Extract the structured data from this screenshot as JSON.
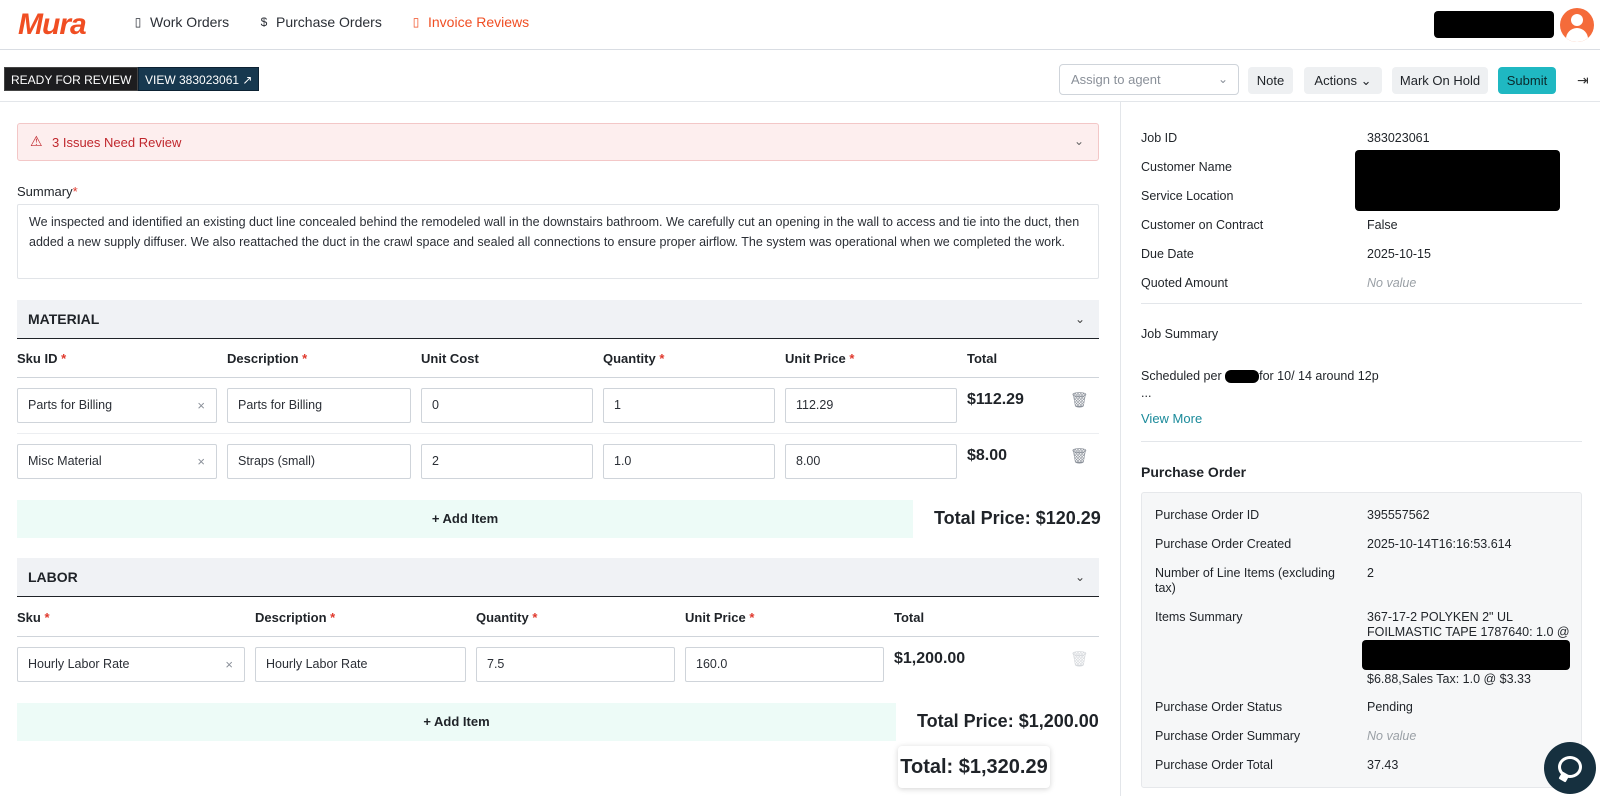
{
  "app": {
    "logo_text": "Mura",
    "brand_color": "#f04e23"
  },
  "nav": {
    "items": [
      {
        "label": "Work Orders",
        "icon": "document-icon"
      },
      {
        "label": "Purchase Orders",
        "icon": "dollar-circle-icon"
      },
      {
        "label": "Invoice Reviews",
        "icon": "invoice-icon",
        "active": true
      }
    ]
  },
  "toolbar": {
    "status": "READY FOR REVIEW",
    "view_label": "VIEW 383023061",
    "assign_placeholder": "Assign to agent",
    "note": "Note",
    "actions": "Actions",
    "hold": "Mark On Hold",
    "submit": "Submit"
  },
  "alert": {
    "text": "3 Issues Need Review"
  },
  "summary": {
    "label": "Summary",
    "text": "We inspected and identified an existing duct line concealed behind the remodeled wall in the downstairs bathroom. We carefully cut an opening in the wall to access and tie into the duct, then added a new supply diffuser. We also reattached the duct in the crawl space and sealed all connections to ensure proper airflow. The system was operational when we completed the work."
  },
  "material": {
    "title": "MATERIAL",
    "headers": {
      "sku": "Sku ID",
      "desc": "Description",
      "unit_cost": "Unit Cost",
      "qty": "Quantity",
      "unit_price": "Unit Price",
      "total": "Total"
    },
    "rows": [
      {
        "sku": "Parts for Billing",
        "desc": "Parts for Billing",
        "unit_cost": "0",
        "qty": "1",
        "unit_price": "112.29",
        "total": "$112.29"
      },
      {
        "sku": "Misc Material",
        "desc": "Straps (small)",
        "unit_cost": "2",
        "qty": "1.0",
        "unit_price": "8.00",
        "total": "$8.00"
      }
    ],
    "add_item": "Add Item",
    "total_price": "Total Price: $120.29"
  },
  "labor": {
    "title": "LABOR",
    "headers": {
      "sku": "Sku",
      "desc": "Description",
      "qty": "Quantity",
      "unit_price": "Unit Price",
      "total": "Total"
    },
    "rows": [
      {
        "sku": "Hourly Labor Rate",
        "desc": "Hourly Labor Rate",
        "qty": "7.5",
        "unit_price": "160.0",
        "total": "$1,200.00"
      }
    ],
    "add_item": "Add Item",
    "total_price": "Total Price: $1,200.00"
  },
  "grand_total": "Total: $1,320.29",
  "job": {
    "fields": [
      {
        "key": "Job ID",
        "value": "383023061"
      },
      {
        "key": "Customer Name",
        "value": ""
      },
      {
        "key": "Service Location",
        "value": ""
      },
      {
        "key": "Customer on Contract",
        "value": "False"
      },
      {
        "key": "Due Date",
        "value": "2025-10-15"
      },
      {
        "key": "Quoted Amount",
        "value": "No value"
      }
    ],
    "summary_label": "Job Summary",
    "summary_pre": "Scheduled per",
    "summary_post": "for 10/ 14 around 12p",
    "summary_ellipsis": "...",
    "view_more": "View More"
  },
  "purchase_order": {
    "title": "Purchase Order",
    "fields": [
      {
        "key": "Purchase Order ID",
        "value": "395557562"
      },
      {
        "key": "Purchase Order Created",
        "value": "2025-10-14T16:16:53.614"
      },
      {
        "key": "Number of Line Items (excluding tax)",
        "value": "2"
      },
      {
        "key": "Items Summary",
        "value_line1": "367-17-2 POLYKEN 2\" UL",
        "value_line2": "FOILMASTIC TAPE 1787640: 1.0 @",
        "value_line3": "$6.88,Sales Tax: 1.0 @ $3.33"
      },
      {
        "key": "Purchase Order Status",
        "value": "Pending"
      },
      {
        "key": "Purchase Order Summary",
        "value": "No value"
      },
      {
        "key": "Purchase Order Total",
        "value": "37.43"
      }
    ]
  }
}
